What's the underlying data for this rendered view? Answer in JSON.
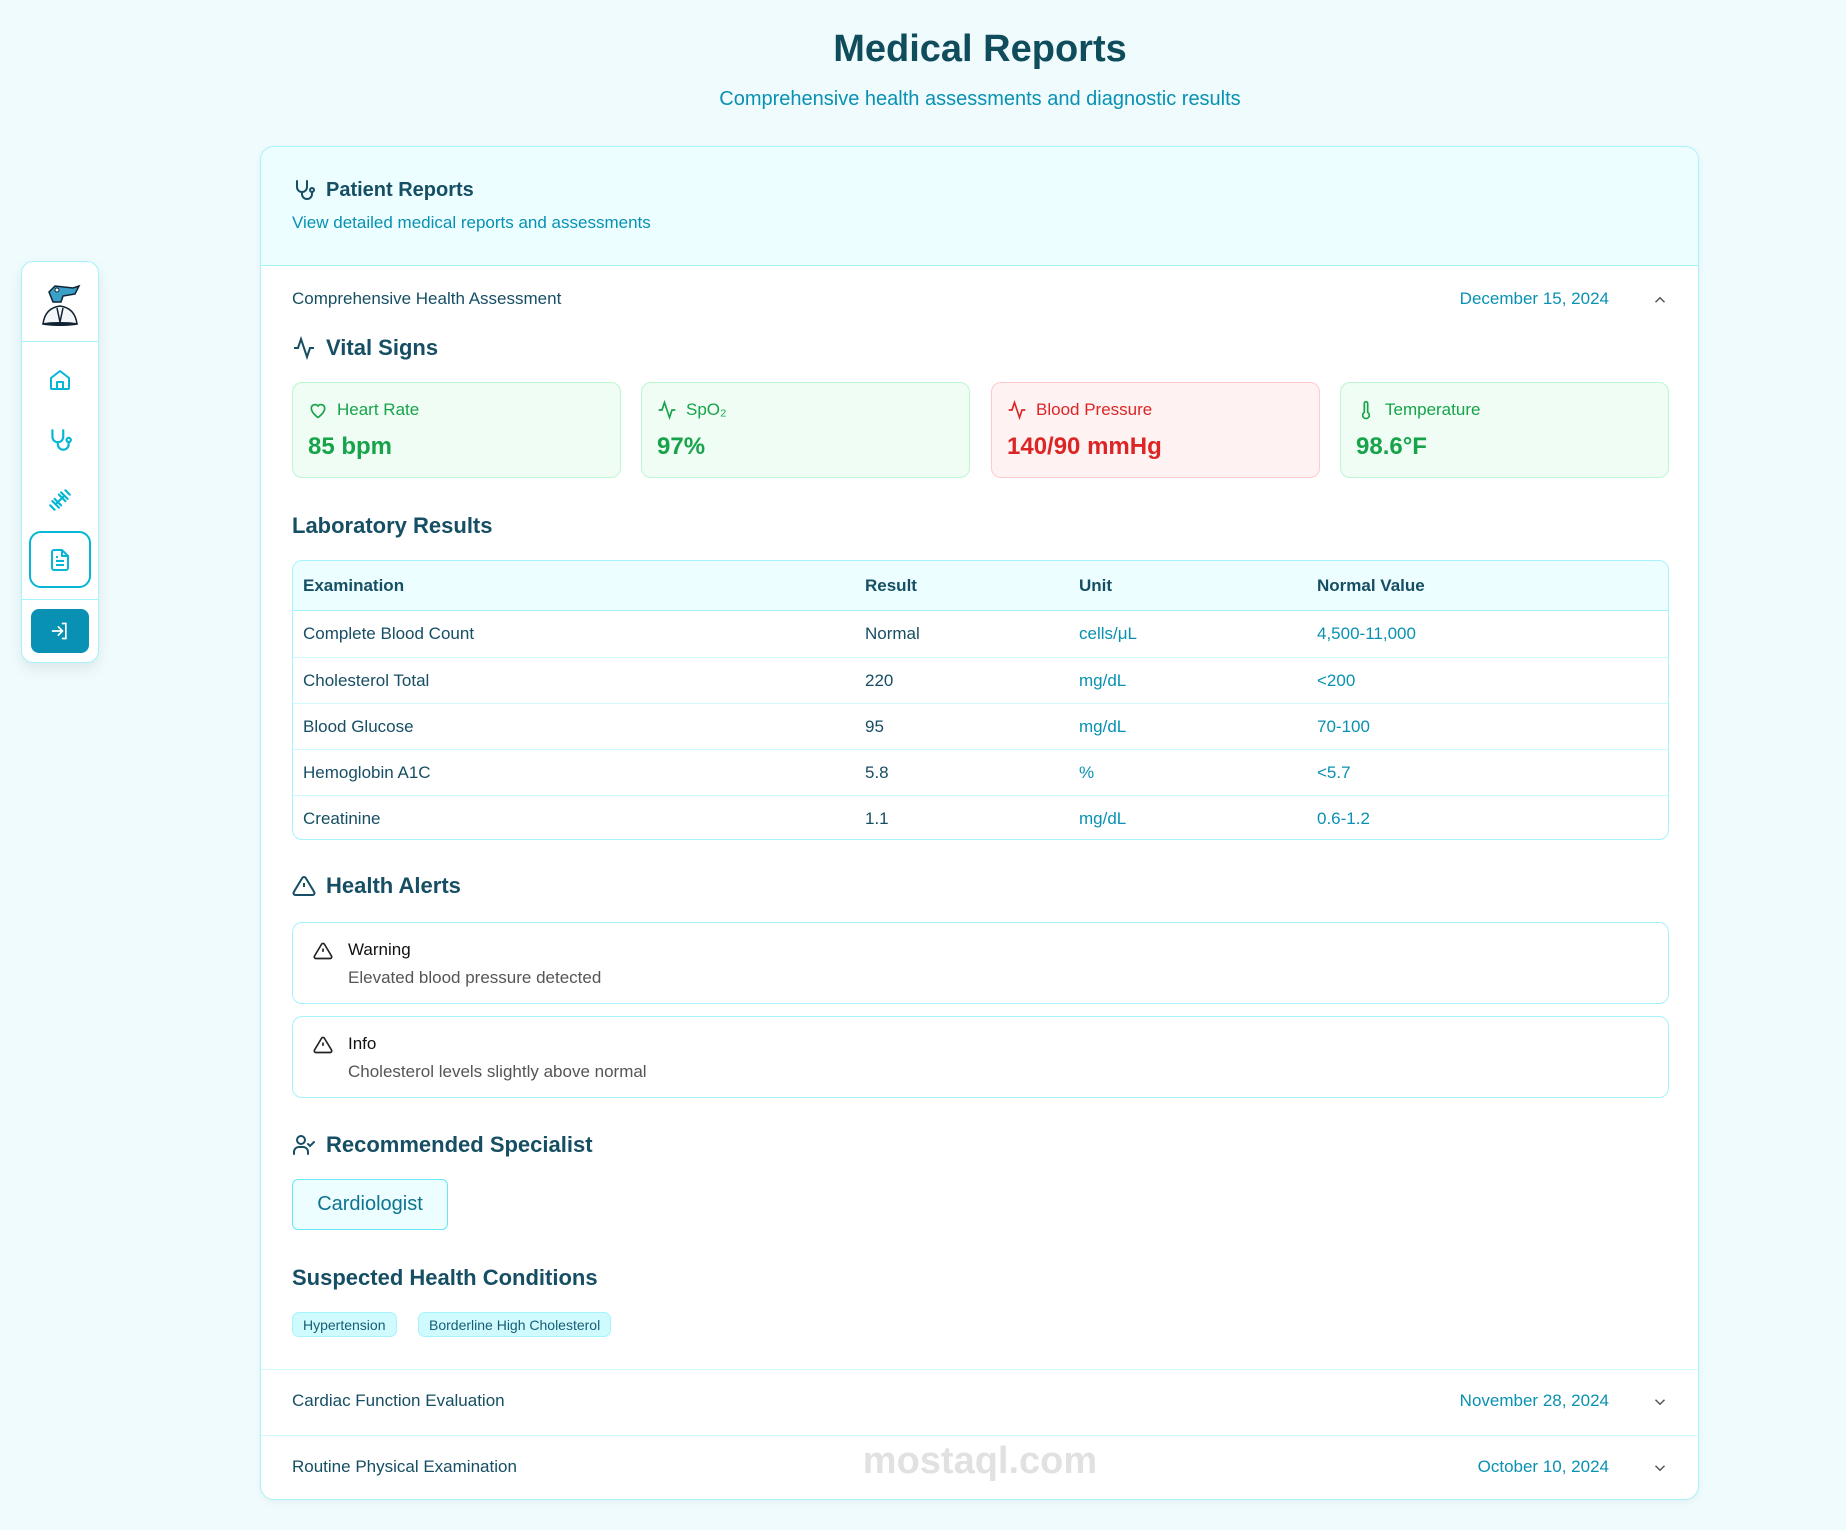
{
  "page": {
    "title": "Medical Reports",
    "subtitle": "Comprehensive health assessments and diagnostic results"
  },
  "sidebar": {
    "items": [
      {
        "name": "logo",
        "icon": "crocodile-doctor-logo"
      },
      {
        "name": "home",
        "icon": "home-icon"
      },
      {
        "name": "doctors",
        "icon": "stethoscope-icon"
      },
      {
        "name": "fitness",
        "icon": "dumbbell-icon"
      },
      {
        "name": "reports",
        "icon": "file-text-icon",
        "active": true
      },
      {
        "name": "login",
        "icon": "log-in-icon"
      }
    ]
  },
  "card": {
    "title": "Patient Reports",
    "subtitle": "View detailed medical reports and assessments"
  },
  "reports": [
    {
      "title": "Comprehensive Health Assessment",
      "date": "December 15, 2024",
      "expanded": true
    },
    {
      "title": "Cardiac Function Evaluation",
      "date": "November 28, 2024",
      "expanded": false
    },
    {
      "title": "Routine Physical Examination",
      "date": "October 10, 2024",
      "expanded": false
    }
  ],
  "vitals": {
    "heading": "Vital Signs",
    "items": [
      {
        "label": "Heart Rate",
        "value": "85 bpm",
        "status": "normal"
      },
      {
        "label": "SpO₂",
        "value": "97%",
        "status": "normal"
      },
      {
        "label": "Blood Pressure",
        "value": "140/90 mmHg",
        "status": "abnormal"
      },
      {
        "label": "Temperature",
        "value": "98.6°F",
        "status": "normal"
      }
    ]
  },
  "lab": {
    "heading": "Laboratory Results",
    "columns": [
      "Examination",
      "Result",
      "Unit",
      "Normal Value"
    ],
    "rows": [
      [
        "Complete Blood Count",
        "Normal",
        "cells/μL",
        "4,500-11,000"
      ],
      [
        "Cholesterol Total",
        "220",
        "mg/dL",
        "<200"
      ],
      [
        "Blood Glucose",
        "95",
        "mg/dL",
        "70-100"
      ],
      [
        "Hemoglobin A1C",
        "5.8",
        "%",
        "<5.7"
      ],
      [
        "Creatinine",
        "1.1",
        "mg/dL",
        "0.6-1.2"
      ]
    ]
  },
  "alerts": {
    "heading": "Health Alerts",
    "items": [
      {
        "type": "Warning",
        "message": "Elevated blood pressure detected"
      },
      {
        "type": "Info",
        "message": "Cholesterol levels slightly above normal"
      }
    ]
  },
  "specialist": {
    "heading": "Recommended Specialist",
    "name": "Cardiologist"
  },
  "conditions": {
    "heading": "Suspected Health Conditions",
    "items": [
      "Hypertension",
      "Borderline High Cholesterol"
    ]
  },
  "colors": {
    "accent": "#0891b2",
    "normal": "#16a34a",
    "abnormal": "#dc2626",
    "border": "#a5f3fc"
  },
  "watermark": "mostaql.com"
}
